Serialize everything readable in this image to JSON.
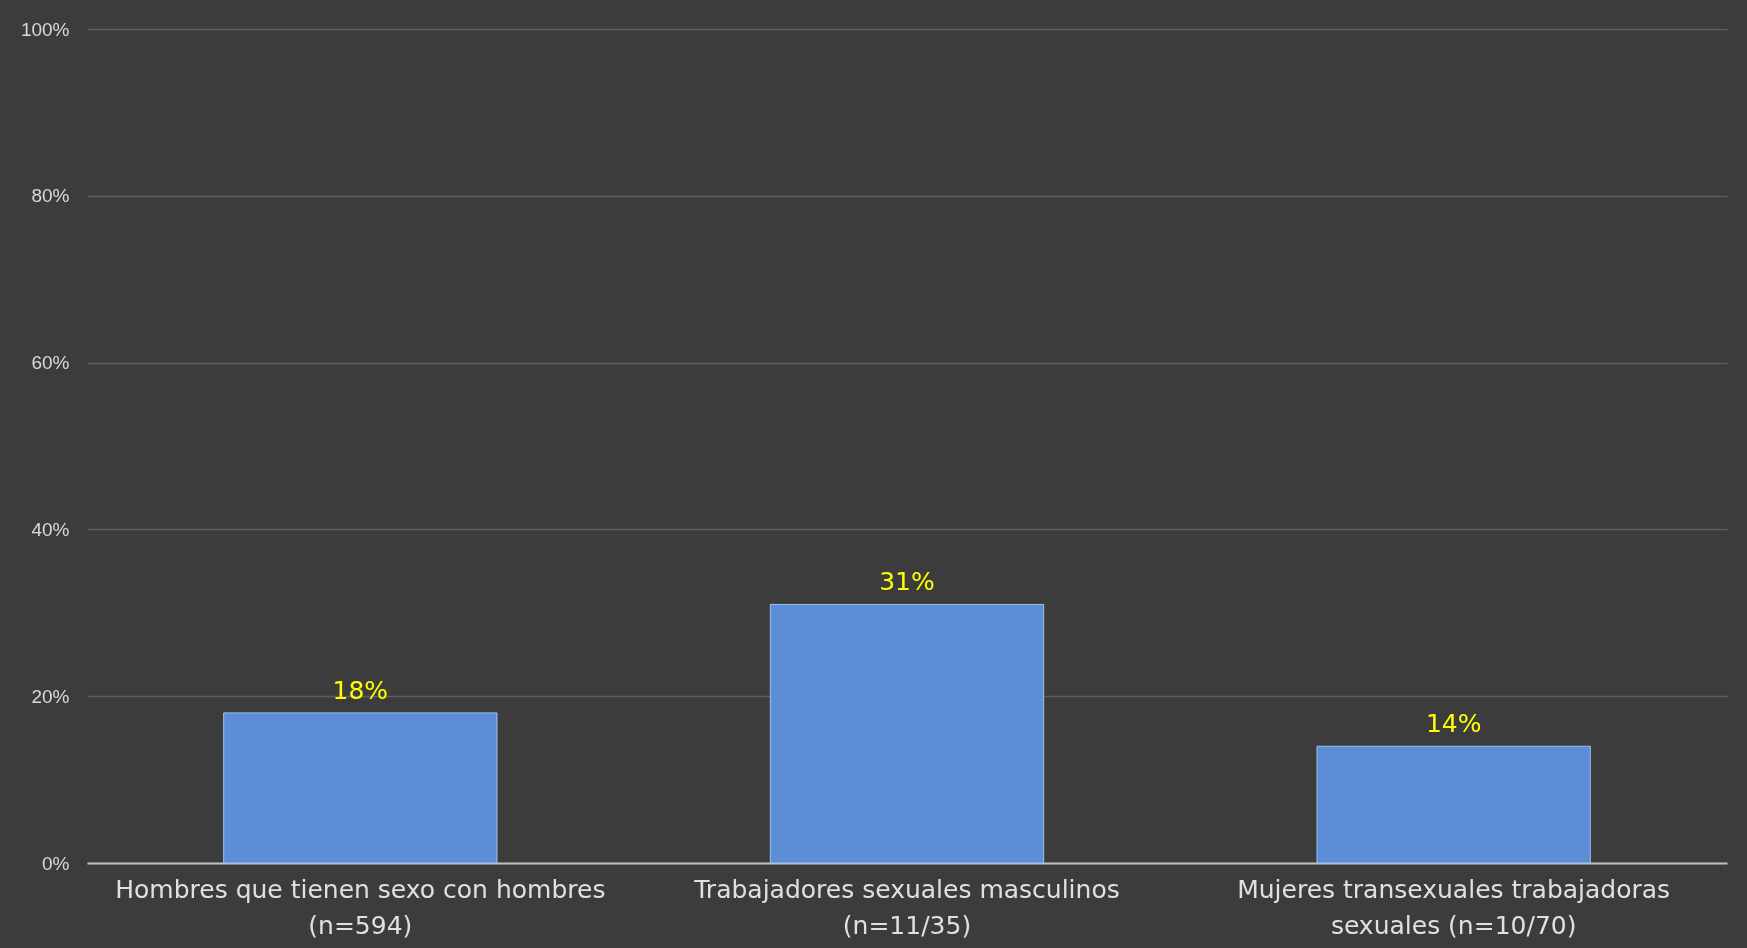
{
  "chart_data": {
    "type": "bar",
    "categories": [
      "Hombres que tienen sexo con hombres (n=594)",
      "Trabajadores sexuales masculinos (n=11/35)",
      "Mujeres transexuales trabajadoras sexuales (n=10/70)"
    ],
    "values": [
      18,
      31,
      14
    ],
    "value_labels": [
      "18%",
      "31%",
      "14%"
    ],
    "color": "#5b8ed6",
    "ylim": [
      0,
      100
    ],
    "yticks": [
      {
        "value": 0,
        "label": "0%"
      },
      {
        "value": 20,
        "label": "20%"
      },
      {
        "value": 40,
        "label": "40%"
      },
      {
        "value": 60,
        "label": "60%"
      },
      {
        "value": 80,
        "label": "80%"
      },
      {
        "value": 100,
        "label": "100%"
      }
    ],
    "grid": "y"
  }
}
